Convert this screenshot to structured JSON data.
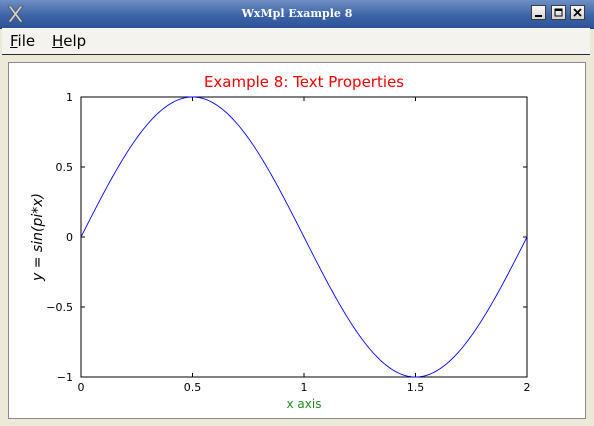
{
  "window": {
    "title": "WxMpl Example 8"
  },
  "menu": {
    "items": [
      {
        "label": "File",
        "mnemonic": "F",
        "rest": "ile"
      },
      {
        "label": "Help",
        "mnemonic": "H",
        "rest": "elp"
      }
    ]
  },
  "chart_data": {
    "type": "line",
    "title": "Example 8: Text Properties",
    "title_color": "#ee0000",
    "xlabel": "x axis",
    "xlabel_color": "#228b22",
    "ylabel": "y = sin(pi*x)",
    "line_color": "#0000ff",
    "function": "sin(pi*x)",
    "xlim": [
      0,
      2
    ],
    "ylim": [
      -1,
      1
    ],
    "xticks": [
      0,
      0.5,
      1,
      1.5,
      2
    ],
    "xtick_labels": [
      "0",
      "0.5",
      "1",
      "1.5",
      "2"
    ],
    "yticks": [
      -1,
      -0.5,
      0,
      0.5,
      1
    ],
    "ytick_labels": [
      "−1",
      "−0.5",
      "0",
      "0.5",
      "1"
    ],
    "x": [
      0,
      0.1,
      0.2,
      0.3,
      0.4,
      0.5,
      0.6,
      0.7,
      0.8,
      0.9,
      1.0,
      1.1,
      1.2,
      1.3,
      1.4,
      1.5,
      1.6,
      1.7,
      1.8,
      1.9,
      2.0
    ],
    "y": [
      0,
      0.309,
      0.588,
      0.809,
      0.951,
      1.0,
      0.951,
      0.809,
      0.588,
      0.309,
      0,
      -0.309,
      -0.588,
      -0.809,
      -0.951,
      -1.0,
      -0.951,
      -0.809,
      -0.588,
      -0.309,
      0
    ]
  }
}
